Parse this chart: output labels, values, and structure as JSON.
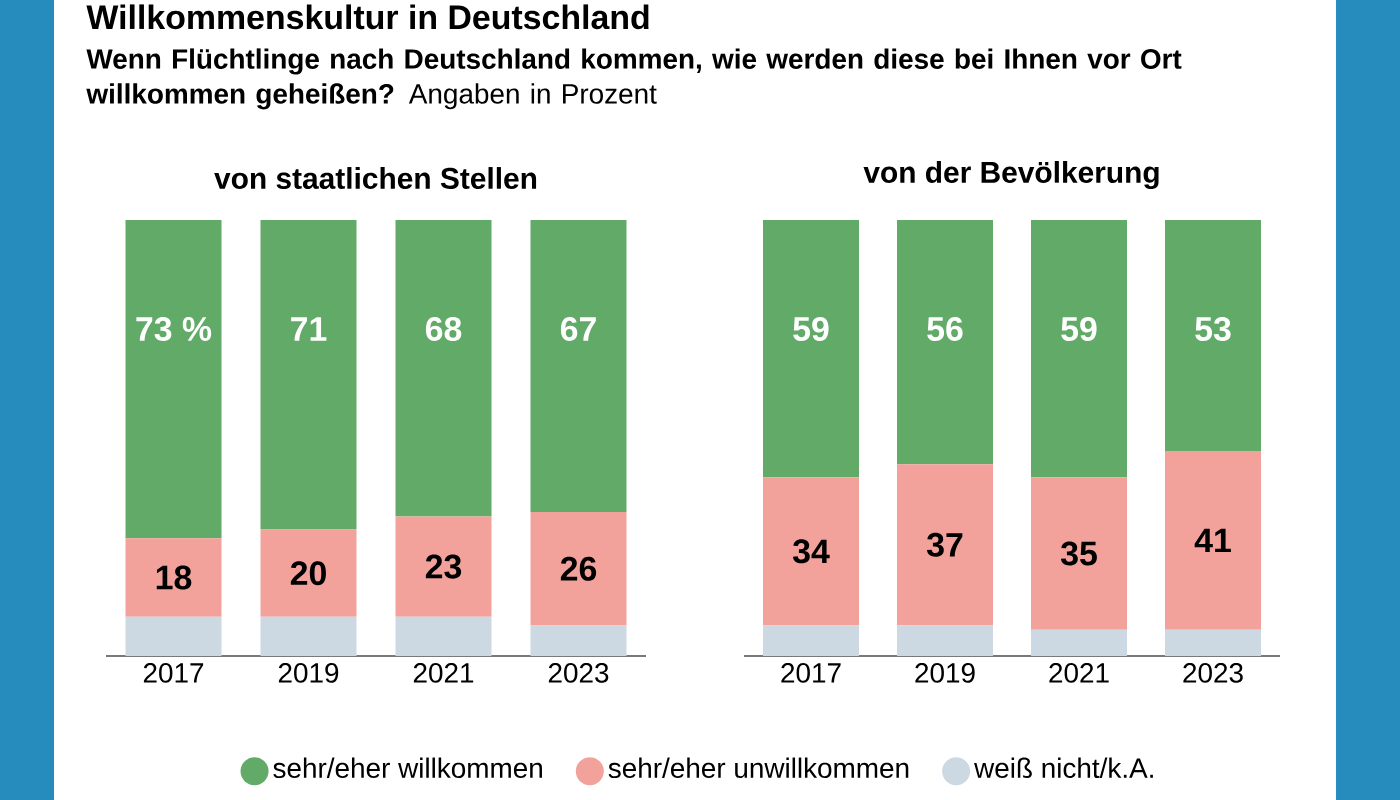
{
  "chart_data": [
    {
      "type": "bar",
      "stacked": true,
      "title": "von staatlichen Stellen",
      "annotations": [
        "Willkommenskultur in Deutschland",
        "**Wenn Flüchtlinge nach Deutschland kommen, wie werden diese bei Ihnen vor Ort willkommen geheißen?** Angaben in Prozent"
      ],
      "categories": [
        "2017",
        "2019",
        "2021",
        "2023"
      ],
      "series": [
        {
          "name": "weiß nicht/k.A.",
          "color": "#ccd9e3",
          "values": [
            9,
            9,
            9,
            7
          ],
          "value_labels": [
            null,
            null,
            null,
            null
          ]
        },
        {
          "name": "sehr/eher unwillkommen",
          "color": "#f2a29b",
          "values": [
            18,
            20,
            23,
            26
          ],
          "value_labels": [
            "18",
            "20",
            "23",
            "26"
          ]
        },
        {
          "name": "sehr/eher willkommen",
          "color": "#62aa68",
          "values": [
            73,
            71,
            68,
            67
          ],
          "value_labels": [
            "73 %",
            "71",
            "68",
            "67"
          ]
        }
      ],
      "legend": "bottom",
      "tick_labels": "x"
    },
    {
      "type": "bar",
      "stacked": true,
      "title": "von der Bevölkerung",
      "categories": [
        "2017",
        "2019",
        "2021",
        "2023"
      ],
      "series": [
        {
          "color": "#ccd9e3",
          "values": [
            7,
            7,
            6,
            6
          ],
          "value_labels": [
            null,
            null,
            null,
            null
          ]
        },
        {
          "color": "#f2a29b",
          "values": [
            34,
            37,
            35,
            41
          ],
          "value_labels": [
            "34",
            "37",
            "35",
            "41"
          ]
        },
        {
          "color": "#62aa68",
          "values": [
            59,
            56,
            59,
            53
          ],
          "value_labels": [
            "59",
            "56",
            "59",
            "53"
          ]
        }
      ],
      "tick_labels": "x"
    }
  ]
}
